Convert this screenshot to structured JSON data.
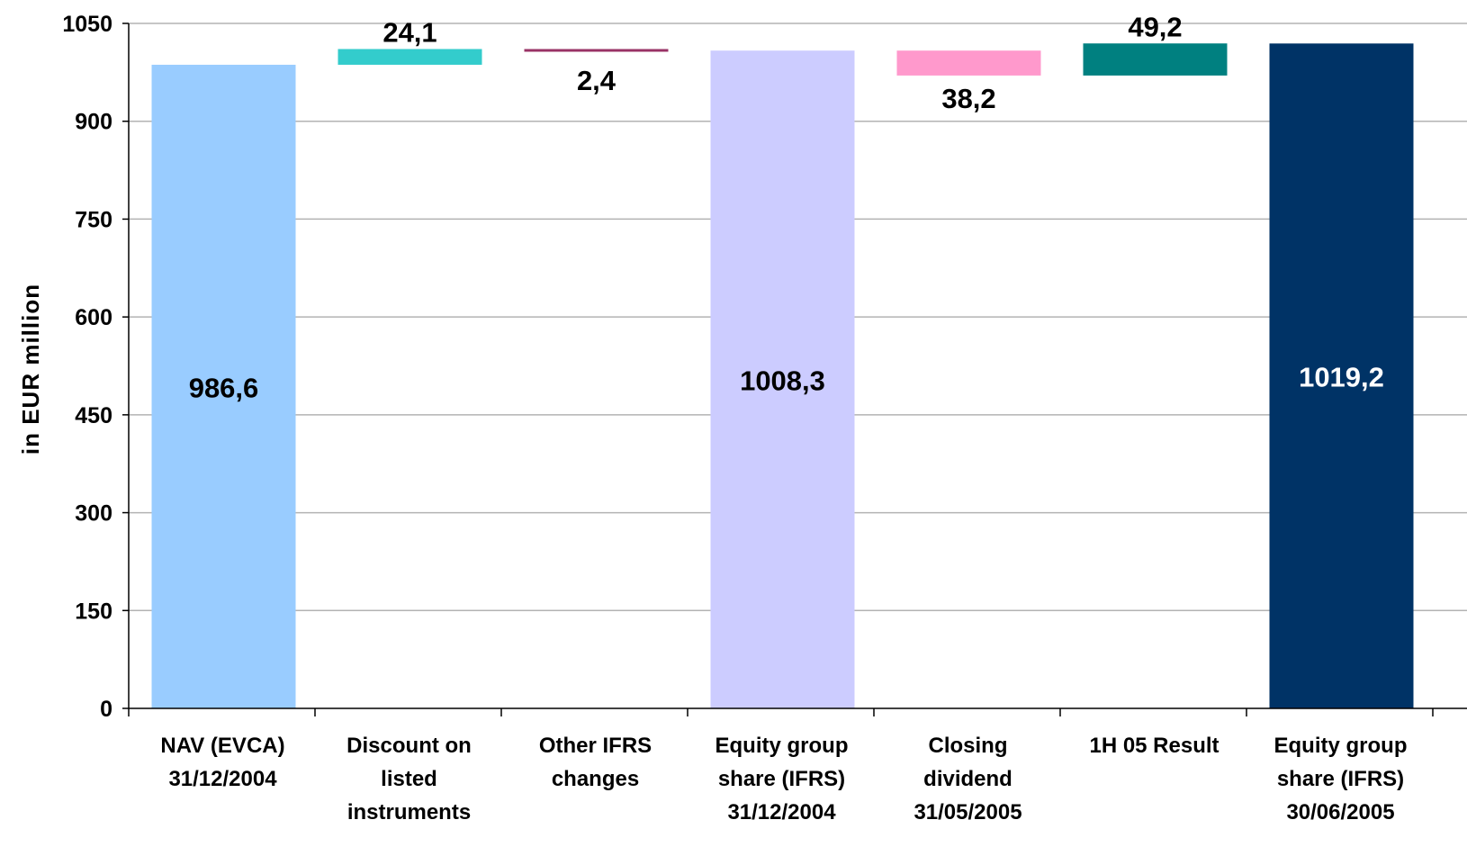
{
  "chart_data": {
    "type": "bar",
    "subtype": "waterfall",
    "title": "",
    "xlabel": "",
    "ylabel": "in EUR million",
    "ylim": [
      0,
      1050
    ],
    "yticks": [
      0,
      150,
      300,
      450,
      600,
      750,
      900,
      1050
    ],
    "ytick_labels": [
      "0",
      "150",
      "300",
      "450",
      "600",
      "750",
      "900",
      "1050"
    ],
    "grid": true,
    "legend": "none",
    "bars": [
      {
        "category": [
          "NAV (EVCA)",
          "31/12/2004"
        ],
        "kind": "total",
        "base": 0,
        "value": 986.6,
        "label": "986,6",
        "color": "#99ccff"
      },
      {
        "category": [
          "Discount on",
          "listed",
          "instruments"
        ],
        "kind": "increase",
        "base": 986.6,
        "value": 24.1,
        "label": "24,1",
        "color": "#33cccc"
      },
      {
        "category": [
          "Other IFRS",
          "changes"
        ],
        "kind": "decrease",
        "base": 1008.3,
        "value": 2.4,
        "label": "2,4",
        "color": "#993366"
      },
      {
        "category": [
          "Equity group",
          "share (IFRS)",
          "31/12/2004"
        ],
        "kind": "total",
        "base": 0,
        "value": 1008.3,
        "label": "1008,3",
        "color": "#ccccff"
      },
      {
        "category": [
          "Closing",
          "dividend",
          "31/05/2005"
        ],
        "kind": "decrease",
        "base": 970.1,
        "value": 38.2,
        "label": "38,2",
        "color": "#ff99cc"
      },
      {
        "category": [
          "1H 05 Result"
        ],
        "kind": "increase",
        "base": 970.1,
        "value": 49.2,
        "label": "49,2",
        "color": "#008080"
      },
      {
        "category": [
          "Equity group",
          "share (IFRS)",
          "30/06/2005"
        ],
        "kind": "total",
        "base": 0,
        "value": 1019.2,
        "label": "1019,2",
        "color": "#003366"
      }
    ]
  }
}
